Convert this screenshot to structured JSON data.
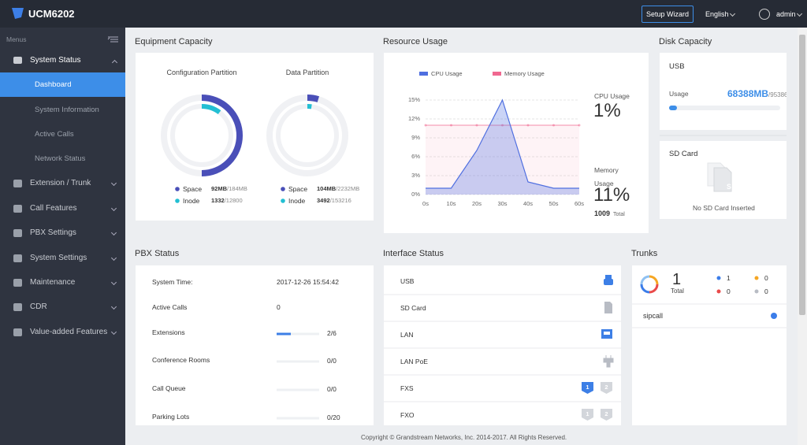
{
  "header": {
    "product": "UCM6202",
    "setup_wizard": "Setup Wizard",
    "language": "English",
    "user": "admin"
  },
  "sidebar": {
    "title": "Menus",
    "expanded": "System Status",
    "submenu": [
      "Dashboard",
      "System Information",
      "Active Calls",
      "Network Status"
    ],
    "items": [
      "Extension / Trunk",
      "Call Features",
      "PBX Settings",
      "System Settings",
      "Maintenance",
      "CDR",
      "Value-added Features"
    ]
  },
  "equipment_capacity": {
    "title": "Equipment Capacity",
    "space_label": "Space",
    "inode_label": "Inode",
    "partitions": [
      {
        "name": "Configuration Partition",
        "space": {
          "used": {
            "value": 92,
            "label": "92MB"
          },
          "total": {
            "value": 184,
            "label": "/184MB"
          }
        },
        "inode": {
          "used": 1332,
          "total": {
            "value": 12800,
            "label": "/12800"
          }
        }
      },
      {
        "name": "Data Partition",
        "space": {
          "used": {
            "value": 104,
            "label": "104MB"
          },
          "total": {
            "value": 2232,
            "label": "/2232MB"
          }
        },
        "inode": {
          "used": 3492,
          "total": {
            "value": 153216,
            "label": "/153216"
          }
        }
      }
    ]
  },
  "resource_usage": {
    "title": "Resource Usage",
    "chart": {
      "type": "area",
      "categories": [
        "0s",
        "10s",
        "20s",
        "30s",
        "40s",
        "50s",
        "60s"
      ],
      "series": [
        {
          "name": "CPU Usage",
          "color": "#4f6fe0",
          "values": [
            1,
            1,
            7,
            15,
            2,
            1,
            1
          ]
        },
        {
          "name": "Memory Usage",
          "color": "#f06890",
          "values": [
            11,
            11,
            11,
            11,
            11,
            11,
            11
          ]
        }
      ],
      "ylim": [
        0,
        15
      ],
      "yticks": [
        {
          "value": 0,
          "label": "0%"
        },
        {
          "value": 3,
          "label": "3%"
        },
        {
          "value": 6,
          "label": "6%"
        },
        {
          "value": 9,
          "label": "9%"
        },
        {
          "value": 12,
          "label": "12%"
        },
        {
          "value": 15,
          "label": "15%"
        }
      ],
      "grid": true
    },
    "cpu": {
      "label": "CPU Usage",
      "value": "1%"
    },
    "memory": {
      "label": "Memory Usage",
      "value": "11%",
      "total": "1009",
      "total_label": "Total"
    }
  },
  "disk_capacity": {
    "title": "Disk Capacity",
    "usb": {
      "title": "USB",
      "usage_label": "Usage",
      "used": "68388MB",
      "total": "/95386"
    },
    "sd_card": {
      "title": "SD Card",
      "icon": "SD",
      "status": "No SD Card Inserted"
    }
  },
  "pbx_status": {
    "title": "PBX Status",
    "rows": [
      {
        "label": "System Time:",
        "value": "2017-12-26 15:54:42"
      },
      {
        "label": "Active Calls",
        "value": 0
      },
      {
        "label": "Extensions",
        "current": 2,
        "total": {
          "value": 6,
          "label": "/6"
        }
      },
      {
        "label": "Conference Rooms",
        "current": 0,
        "total": {
          "value": 0,
          "label": "/0"
        }
      },
      {
        "label": "Call Queue",
        "current": 0,
        "total": {
          "value": 0,
          "label": "/0"
        }
      },
      {
        "label": "Parking Lots",
        "current": 0,
        "total": {
          "value": 20,
          "label": "/20"
        }
      }
    ]
  },
  "interface_status": {
    "title": "Interface Status",
    "rows": [
      {
        "label": "USB"
      },
      {
        "label": "SD Card"
      },
      {
        "label": "LAN"
      },
      {
        "label": "LAN PoE"
      },
      {
        "label": "FXS",
        "ports": [
          1,
          2
        ]
      },
      {
        "label": "FXO",
        "ports": [
          1,
          2
        ]
      }
    ]
  },
  "trunks": {
    "title": "Trunks",
    "total": 1,
    "total_label": "Total",
    "counts": [
      {
        "color": "#3b7de9",
        "value": 1
      },
      {
        "color": "#f5a623",
        "value": 0
      },
      {
        "color": "#e94a4a",
        "value": 0
      },
      {
        "color": "#b8bcc4",
        "value": 0
      }
    ],
    "list": [
      "sipcall"
    ]
  },
  "footer": "Copyright © Grandstream Networks, Inc. 2014-2017. All Rights Reserved."
}
